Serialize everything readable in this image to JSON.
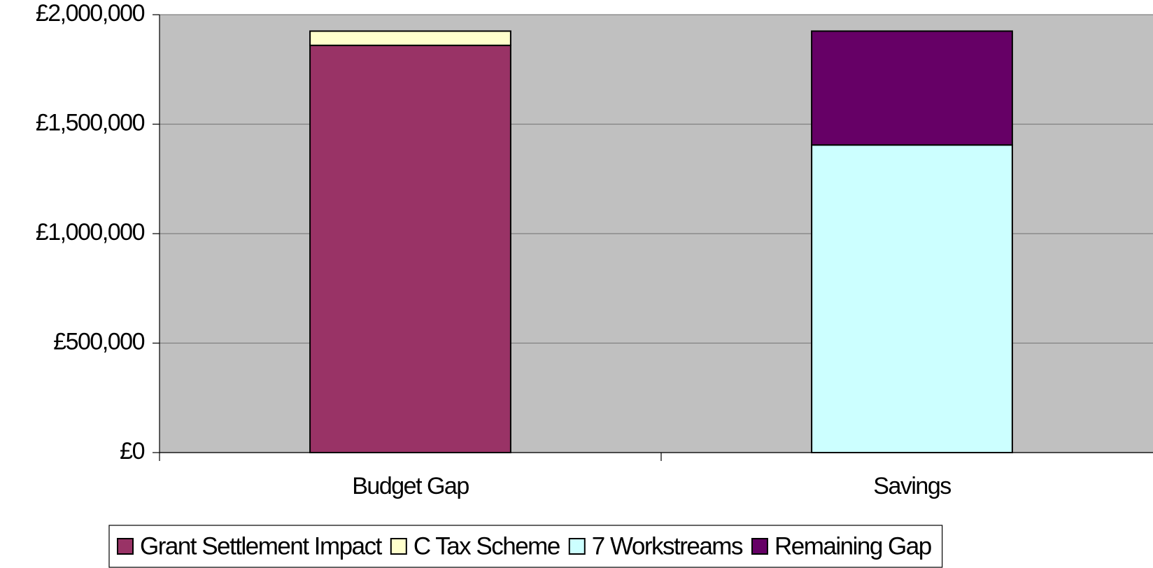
{
  "chart_data": {
    "type": "stacked_bar",
    "categories": [
      "Budget Gap",
      "Savings"
    ],
    "series": [
      {
        "name": "Grant Settlement Impact",
        "color": "#993366",
        "values": [
          1860000,
          null
        ]
      },
      {
        "name": "C Tax Scheme",
        "color": "#ffffcc",
        "values": [
          65000,
          null
        ]
      },
      {
        "name": "7 Workstreams",
        "color": "#ccffff",
        "values": [
          null,
          1405000
        ]
      },
      {
        "name": "Remaining Gap",
        "color": "#660066",
        "values": [
          null,
          520000
        ]
      }
    ],
    "ylim": [
      0,
      2000000
    ],
    "yticks": [
      {
        "value": 0,
        "label": "£0"
      },
      {
        "value": 500000,
        "label": "£500,000"
      },
      {
        "value": 1000000,
        "label": "£1,000,000"
      },
      {
        "value": 1500000,
        "label": "£1,500,000"
      },
      {
        "value": 2000000,
        "label": "£2,000,000"
      }
    ],
    "grid": true,
    "plot_background": "#c0c0c0",
    "legend": "bottom"
  }
}
